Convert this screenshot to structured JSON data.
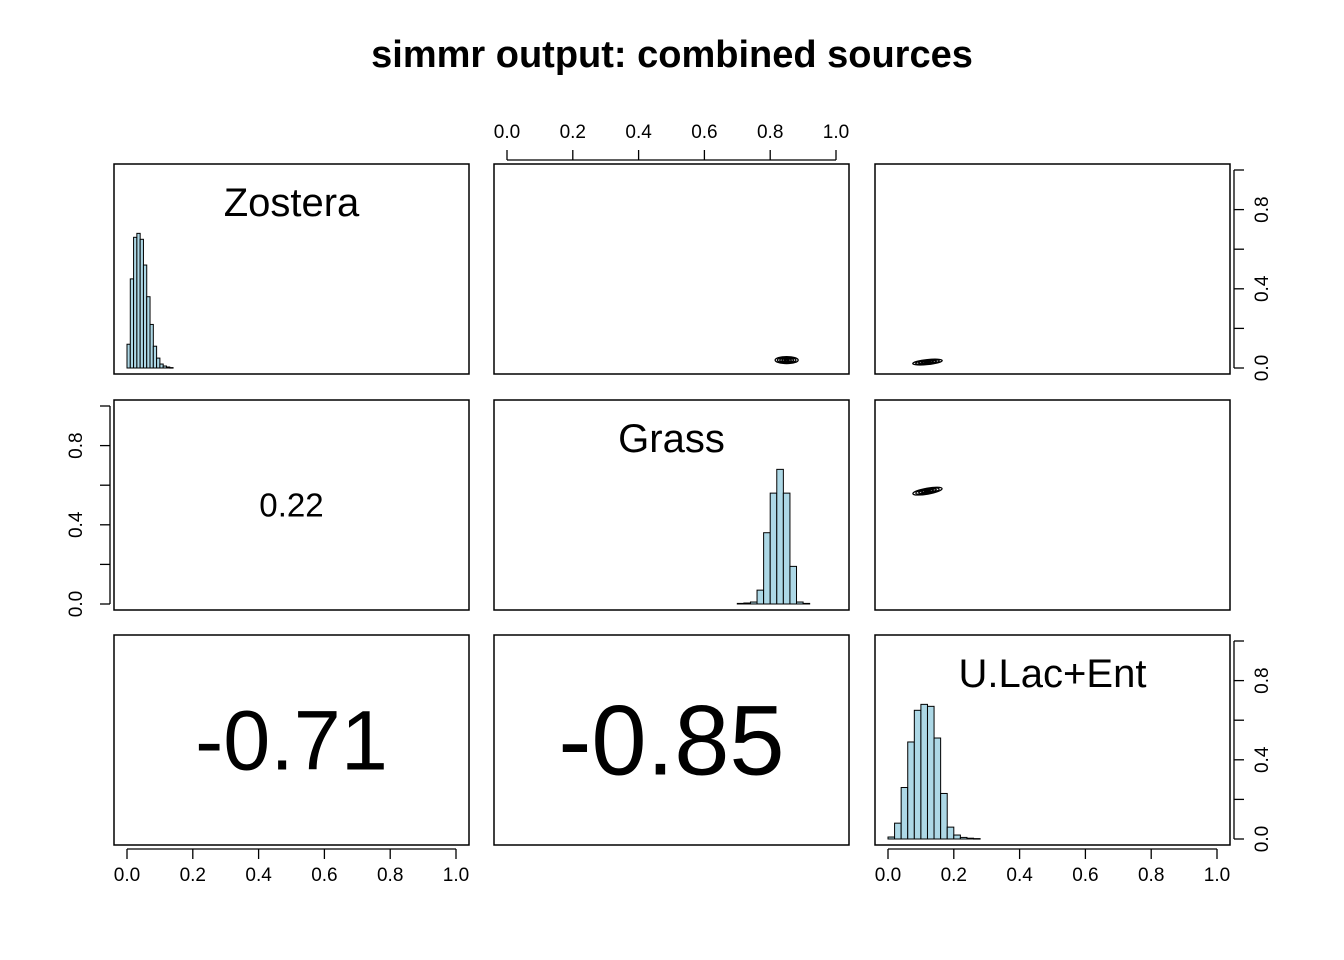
{
  "title": "simmr output: combined sources",
  "colors": {
    "hist_fill": "#add8e6",
    "stroke": "#000000",
    "background": "#ffffff"
  },
  "chart_data": {
    "type": "pairs",
    "sources": [
      "Zostera",
      "Grass",
      "U.Lac+Ent"
    ],
    "axis": {
      "xlim": [
        0,
        1
      ],
      "ylim": [
        0,
        1
      ],
      "ticks": [
        0.0,
        0.2,
        0.4,
        0.6,
        0.8,
        1.0
      ],
      "tick_labels": [
        "0.0",
        "0.2",
        "0.4",
        "0.6",
        "0.8",
        "1.0"
      ],
      "y_tick_labels": [
        "0.0",
        "0.4",
        "0.8"
      ]
    },
    "correlations": [
      {
        "row": "Grass",
        "col": "Zostera",
        "value": "0.22"
      },
      {
        "row": "U.Lac+Ent",
        "col": "Zostera",
        "value": "-0.71"
      },
      {
        "row": "U.Lac+Ent",
        "col": "Grass",
        "value": "-0.85"
      }
    ],
    "histograms": [
      {
        "source": "Zostera",
        "bin_width": 0.01,
        "bin_starts": [
          0.0,
          0.01,
          0.02,
          0.03,
          0.04,
          0.05,
          0.06,
          0.07,
          0.08,
          0.09,
          0.1,
          0.11,
          0.12,
          0.13
        ],
        "heights": [
          0.12,
          0.45,
          0.66,
          0.68,
          0.65,
          0.52,
          0.36,
          0.22,
          0.11,
          0.05,
          0.02,
          0.01,
          0.005,
          0.002
        ]
      },
      {
        "source": "Grass",
        "bin_width": 0.02,
        "bin_starts": [
          0.7,
          0.72,
          0.74,
          0.76,
          0.78,
          0.8,
          0.82,
          0.84,
          0.86,
          0.88,
          0.9
        ],
        "heights": [
          0.003,
          0.005,
          0.01,
          0.07,
          0.36,
          0.56,
          0.68,
          0.56,
          0.19,
          0.01,
          0.003
        ]
      },
      {
        "source": "U.Lac+Ent",
        "bin_width": 0.02,
        "bin_starts": [
          0.0,
          0.02,
          0.04,
          0.06,
          0.08,
          0.1,
          0.12,
          0.14,
          0.16,
          0.18,
          0.2,
          0.22,
          0.24,
          0.26
        ],
        "heights": [
          0.01,
          0.08,
          0.26,
          0.49,
          0.65,
          0.68,
          0.67,
          0.51,
          0.23,
          0.06,
          0.02,
          0.008,
          0.004,
          0.002
        ]
      }
    ],
    "contours": [
      {
        "x": "Grass",
        "y": "Zostera",
        "center": [
          0.85,
          0.04
        ],
        "radii": [
          0.07,
          0.035
        ],
        "angle": 0
      },
      {
        "x": "U.Lac+Ent",
        "y": "Zostera",
        "center": [
          0.12,
          0.03
        ],
        "radii": [
          0.09,
          0.025
        ],
        "angle": -6
      },
      {
        "x": "U.Lac+Ent",
        "y": "Grass",
        "center": [
          0.12,
          0.57
        ],
        "radii": [
          0.09,
          0.03
        ],
        "angle": -10
      }
    ]
  }
}
